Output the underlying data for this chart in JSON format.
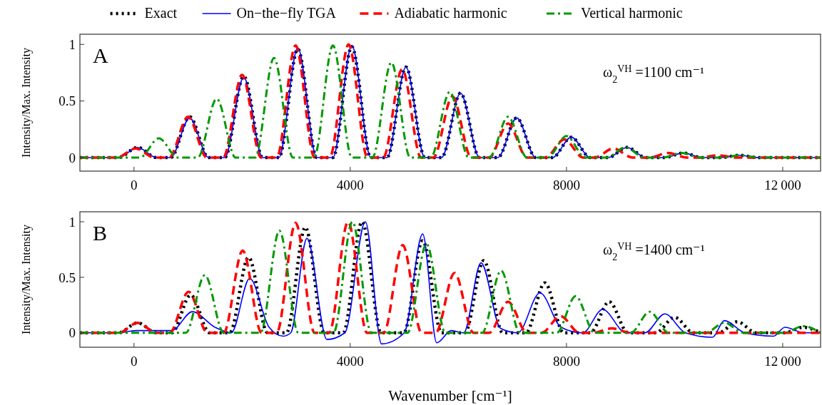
{
  "chart_data": [
    {
      "type": "line",
      "title": "A",
      "ylabel": "Intensity/Max. Intensity",
      "annotations": [
        "ω$_{2}$$^{VH}$ =1100 cm⁻¹"
      ],
      "legend": "top",
      "xlim": [
        -1000,
        12700
      ],
      "xticks": [
        0,
        4000,
        8000,
        12000
      ],
      "ylim": [
        -0.12,
        1.09
      ],
      "yticks": [
        0,
        0.5,
        1
      ],
      "series": [
        {
          "name": "Exact",
          "color": "#000000",
          "line_style": "dotted",
          "x": [
            -1000,
            -284,
            66,
            416,
            680,
            1030,
            1380,
            1680,
            2030,
            2380,
            2680,
            3030,
            3380,
            3680,
            4030,
            4380,
            4680,
            5030,
            5380,
            5690,
            6040,
            6390,
            6730,
            7080,
            7430,
            7740,
            8090,
            8440,
            8770,
            9120,
            9470,
            9810,
            10160,
            10510,
            10850,
            11200,
            11550,
            12700
          ],
          "values": [
            0,
            0,
            0.09,
            0,
            0,
            0.36,
            0,
            0,
            0.72,
            0,
            0,
            0.96,
            0,
            0,
            0.98,
            0,
            0,
            0.8,
            0,
            0,
            0.57,
            0,
            0,
            0.35,
            0,
            0,
            0.18,
            0,
            0,
            0.09,
            0,
            0,
            0.04,
            0,
            0,
            0.02,
            0,
            0
          ]
        },
        {
          "name": "On−the−fly TGA",
          "color": "#0000ff",
          "line_style": "solid",
          "x": [
            -1000,
            -284,
            66,
            416,
            680,
            1030,
            1380,
            1680,
            2030,
            2380,
            2680,
            3030,
            3380,
            3680,
            4030,
            4380,
            4680,
            5030,
            5380,
            5690,
            6040,
            6390,
            6730,
            7080,
            7430,
            7740,
            8090,
            8440,
            8770,
            9120,
            9470,
            9810,
            10160,
            10510,
            10850,
            11200,
            11550,
            12700
          ],
          "values": [
            0,
            0,
            0.09,
            0,
            0,
            0.35,
            0,
            0,
            0.71,
            0,
            0,
            0.97,
            0,
            0,
            0.99,
            0,
            0,
            0.8,
            0,
            0,
            0.57,
            0,
            0,
            0.35,
            0,
            0,
            0.18,
            0,
            0,
            0.09,
            0,
            0,
            0.04,
            0,
            0,
            0.02,
            0,
            0
          ]
        },
        {
          "name": "Adiabatic harmonic",
          "color": "#ff0000",
          "line_style": "dashed",
          "x": [
            -1000,
            -320,
            30,
            380,
            650,
            1000,
            1350,
            1650,
            2000,
            2350,
            2640,
            2990,
            3340,
            3620,
            3970,
            4320,
            4610,
            4960,
            5310,
            5540,
            5890,
            6240,
            6570,
            6920,
            7270,
            7610,
            7960,
            8310,
            8520,
            8870,
            9220,
            9530,
            9880,
            10230,
            10450,
            10800,
            11150,
            12700
          ],
          "values": [
            0,
            0,
            0.08,
            0,
            0,
            0.36,
            0,
            0,
            0.73,
            0,
            0,
            0.99,
            0,
            0,
            1.0,
            0,
            0,
            0.78,
            0,
            0,
            0.54,
            0,
            0,
            0.3,
            0,
            0,
            0.16,
            0,
            0,
            0.08,
            0,
            0,
            0.04,
            0,
            0,
            0.02,
            0,
            0
          ]
        },
        {
          "name": "Vertical harmonic",
          "color": "#009900",
          "line_style": "dashdot",
          "x": [
            -1000,
            110,
            460,
            810,
            1180,
            1530,
            1880,
            2240,
            2590,
            2940,
            3330,
            3680,
            4030,
            4410,
            4760,
            5110,
            5490,
            5840,
            6190,
            6570,
            6920,
            7270,
            7650,
            8000,
            8350,
            8740,
            9090,
            9440,
            9780,
            10130,
            10480,
            10870,
            11220,
            11570,
            12700
          ],
          "values": [
            0,
            0,
            0.17,
            0,
            0,
            0.52,
            0,
            0,
            0.88,
            0,
            0,
            0.99,
            0,
            0,
            0.84,
            0,
            0,
            0.58,
            0,
            0,
            0.36,
            0,
            0,
            0.19,
            0,
            0,
            0.09,
            0,
            0,
            0.04,
            0,
            0,
            0.02,
            0,
            0
          ]
        }
      ]
    },
    {
      "type": "line",
      "title": "B",
      "xlabel": "Wavenumber [cm⁻¹]",
      "ylabel": "Intensity/Max. Intensity",
      "annotations": [
        "ω$_{2}$$^{VH}$ =1400 cm⁻¹"
      ],
      "xlim": [
        -1000,
        12700
      ],
      "xticks": [
        0,
        4000,
        8000,
        12000
      ],
      "ylim": [
        -0.13,
        1.09
      ],
      "yticks": [
        0,
        0.5,
        1
      ],
      "series": [
        {
          "color": "#000000",
          "line_style": "dotted",
          "x": [
            -1000,
            -284,
            66,
            416,
            700,
            1050,
            1400,
            1770,
            2120,
            2470,
            2820,
            3170,
            3520,
            3870,
            4220,
            4570,
            4990,
            5340,
            5690,
            6120,
            6470,
            6820,
            7250,
            7600,
            7950,
            8440,
            8790,
            9140,
            9650,
            10000,
            10350,
            10810,
            11160,
            11510,
            12030,
            12380,
            12700
          ],
          "values": [
            0,
            0,
            0.09,
            0,
            0,
            0.34,
            0,
            0,
            0.68,
            0,
            0,
            0.95,
            0,
            0,
            1.0,
            0,
            0,
            0.83,
            0,
            0,
            0.65,
            0,
            0,
            0.45,
            0,
            0,
            0.28,
            0,
            0,
            0.14,
            0,
            0,
            0.1,
            0,
            0,
            0.05,
            0
          ]
        },
        {
          "color": "#0000ff",
          "line_style": "solid",
          "x": [
            -1000,
            -300,
            40,
            700,
            1080,
            1500,
            1800,
            2140,
            2500,
            2760,
            2900,
            3200,
            3570,
            3900,
            4280,
            4580,
            5000,
            5340,
            5600,
            5870,
            6100,
            6420,
            6780,
            7100,
            7510,
            7900,
            8300,
            8670,
            9100,
            9450,
            9820,
            10200,
            10700,
            10920,
            11300,
            11830,
            12040,
            12400,
            12700
          ],
          "values": [
            0,
            0,
            0.02,
            0.02,
            0.19,
            0.05,
            0,
            0.49,
            0.05,
            -0.03,
            0,
            0.85,
            -0.06,
            0,
            1.0,
            -0.1,
            0,
            0.89,
            -0.09,
            0.02,
            0,
            0.63,
            0.04,
            0,
            0.36,
            0.05,
            0,
            0.21,
            0,
            0,
            0.17,
            0,
            -0.04,
            0.11,
            0,
            -0.03,
            0.05,
            0,
            0
          ]
        },
        {
          "color": "#ff0000",
          "line_style": "dashed",
          "x": [
            -1000,
            -284,
            66,
            416,
            660,
            1010,
            1360,
            1660,
            2010,
            2360,
            2640,
            2990,
            3340,
            3610,
            3960,
            4310,
            4620,
            4970,
            5320,
            5580,
            5930,
            6280,
            6570,
            6920,
            7270,
            7540,
            7890,
            8240,
            8490,
            8840,
            9190,
            12700
          ],
          "values": [
            0,
            0,
            0.09,
            0,
            0,
            0.37,
            0,
            0,
            0.74,
            0,
            0,
            0.99,
            0,
            0,
            1.0,
            0,
            0,
            0.79,
            0,
            0,
            0.54,
            0,
            0,
            0.28,
            0,
            0,
            0.15,
            0,
            0,
            0.04,
            0,
            0
          ]
        },
        {
          "color": "#009900",
          "line_style": "dashdot",
          "x": [
            -1000,
            960,
            1310,
            1660,
            2340,
            2690,
            3040,
            3690,
            4040,
            4390,
            5060,
            5410,
            5760,
            6440,
            6790,
            7140,
            7820,
            8170,
            8520,
            9190,
            9540,
            9890,
            10570,
            10920,
            11270,
            12030,
            12380,
            12700
          ],
          "values": [
            0,
            0,
            0.52,
            0,
            0,
            0.92,
            0,
            0,
            1.0,
            0,
            0,
            0.8,
            0,
            0,
            0.56,
            0,
            0,
            0.33,
            0,
            0,
            0.19,
            0,
            0,
            0.09,
            0,
            0,
            0.06,
            0
          ]
        }
      ]
    }
  ]
}
